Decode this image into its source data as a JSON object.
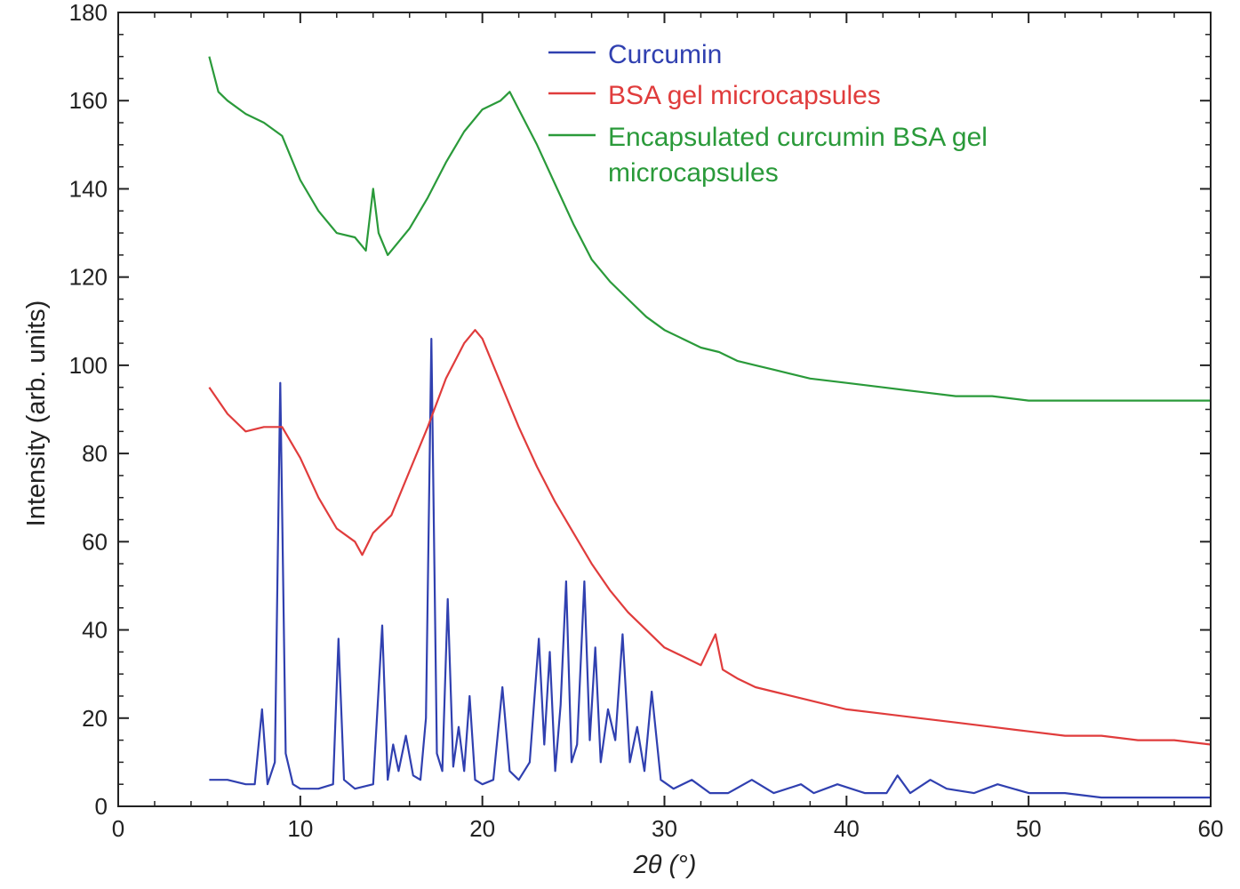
{
  "chart_data": {
    "type": "line",
    "title": "",
    "xlabel": "2θ (°)",
    "ylabel": "Intensity (arb. units)",
    "xlim": [
      0,
      60
    ],
    "ylim": [
      0,
      180
    ],
    "x_ticks": [
      0,
      10,
      20,
      30,
      40,
      50,
      60
    ],
    "y_ticks": [
      0,
      20,
      40,
      60,
      80,
      100,
      120,
      140,
      160,
      180
    ],
    "grid": false,
    "legend_position": "top-center",
    "series": [
      {
        "name": "Curcumin",
        "color": "#3040b0",
        "x": [
          5,
          6,
          7,
          7.5,
          7.9,
          8.2,
          8.6,
          8.9,
          9.2,
          9.6,
          10,
          11,
          11.8,
          12.1,
          12.4,
          13,
          14,
          14.5,
          14.8,
          15.1,
          15.4,
          15.8,
          16.2,
          16.6,
          16.9,
          17.2,
          17.5,
          17.8,
          18.1,
          18.4,
          18.7,
          19,
          19.3,
          19.6,
          20,
          20.6,
          21.1,
          21.5,
          22,
          22.6,
          23.1,
          23.4,
          23.7,
          24,
          24.3,
          24.6,
          24.9,
          25.2,
          25.6,
          25.9,
          26.2,
          26.5,
          26.9,
          27.3,
          27.7,
          28.1,
          28.5,
          28.9,
          29.3,
          29.8,
          30.5,
          31.5,
          32.5,
          33.5,
          34.8,
          36,
          37.5,
          38.2,
          39.5,
          41,
          42.2,
          42.8,
          43.5,
          44.6,
          45.5,
          47,
          48.3,
          50,
          52,
          54,
          56,
          58,
          60
        ],
        "values": [
          6,
          6,
          5,
          5,
          22,
          5,
          10,
          96,
          12,
          5,
          4,
          4,
          5,
          38,
          6,
          4,
          5,
          41,
          6,
          14,
          8,
          16,
          7,
          6,
          20,
          106,
          12,
          8,
          47,
          9,
          18,
          8,
          25,
          6,
          5,
          6,
          27,
          8,
          6,
          10,
          38,
          14,
          35,
          8,
          23,
          51,
          10,
          14,
          51,
          15,
          36,
          10,
          22,
          15,
          39,
          10,
          18,
          8,
          26,
          6,
          4,
          6,
          3,
          3,
          6,
          3,
          5,
          3,
          5,
          3,
          3,
          7,
          3,
          6,
          4,
          3,
          5,
          3,
          3,
          2,
          2,
          2,
          2
        ]
      },
      {
        "name": "BSA gel microcapsules",
        "color": "#e03c3c",
        "x": [
          5,
          6,
          7,
          8,
          9,
          10,
          11,
          12,
          13,
          13.4,
          14,
          15,
          16,
          17,
          18,
          19,
          19.6,
          20,
          21,
          22,
          23,
          24,
          25,
          26,
          27,
          28,
          29,
          30,
          31,
          32,
          32.8,
          33.2,
          34,
          35,
          36,
          38,
          40,
          42,
          44,
          46,
          48,
          50,
          52,
          54,
          56,
          58,
          60
        ],
        "values": [
          95,
          89,
          85,
          86,
          86,
          79,
          70,
          63,
          60,
          57,
          62,
          66,
          76,
          86,
          97,
          105,
          108,
          106,
          96,
          86,
          77,
          69,
          62,
          55,
          49,
          44,
          40,
          36,
          34,
          32,
          39,
          31,
          29,
          27,
          26,
          24,
          22,
          21,
          20,
          19,
          18,
          17,
          16,
          16,
          15,
          15,
          14
        ]
      },
      {
        "name": "Encapsulated curcumin BSA gel microcapsules",
        "color": "#2a9a3a",
        "x": [
          5,
          5.5,
          6,
          7,
          8,
          9,
          10,
          11,
          12,
          13,
          13.6,
          14,
          14.3,
          14.8,
          16,
          17,
          18,
          19,
          20,
          21,
          21.5,
          22,
          23,
          24,
          25,
          26,
          27,
          28,
          29,
          30,
          31,
          32,
          33,
          34,
          35,
          36,
          38,
          40,
          42,
          44,
          46,
          48,
          50,
          52,
          54,
          56,
          58,
          60
        ],
        "values": [
          170,
          162,
          160,
          157,
          155,
          152,
          142,
          135,
          130,
          129,
          126,
          140,
          130,
          125,
          131,
          138,
          146,
          153,
          158,
          160,
          162,
          158,
          150,
          141,
          132,
          124,
          119,
          115,
          111,
          108,
          106,
          104,
          103,
          101,
          100,
          99,
          97,
          96,
          95,
          94,
          93,
          93,
          92,
          92,
          92,
          92,
          92,
          92
        ]
      }
    ]
  }
}
